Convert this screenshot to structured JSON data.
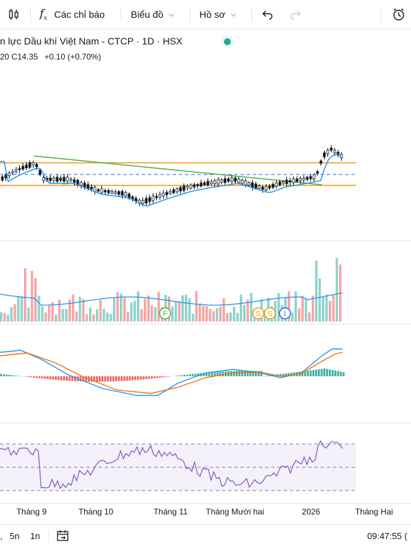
{
  "toolbar": {
    "indicators_label": "Các chỉ báo",
    "chart_type_label": "Biểu đồ",
    "profile_label": "Hồ sơ"
  },
  "header": {
    "title": "n lực Dầu khí Việt Nam - CTCP · 1D · HSX",
    "ohlc_prefix": "20",
    "close": "C14.35",
    "change": "+0.10 (+0.70%)"
  },
  "event_markers": [
    "F",
    "S",
    "S",
    "I"
  ],
  "x_axis_labels": [
    "Tháng 9",
    "Tháng 10",
    "Tháng 11",
    "Tháng Mười hai",
    "2026",
    "Tháng Hai"
  ],
  "bottom_bar": {
    "range_5d": "5n",
    "range_1y": "1n",
    "time": "09:47:55 ("
  },
  "colors": {
    "up": "#26a69a",
    "down": "#ef5350",
    "vol_up": "#8fd3cb",
    "vol_down": "#f5a6a6",
    "ma": "#2196f3",
    "orange_line": "#f39c12",
    "green_trend": "#4caf50",
    "dashed_blue": "#2962ff",
    "macd": "#2196f3",
    "signal": "#ff6d00",
    "rsi": "#7e57c2"
  }
}
